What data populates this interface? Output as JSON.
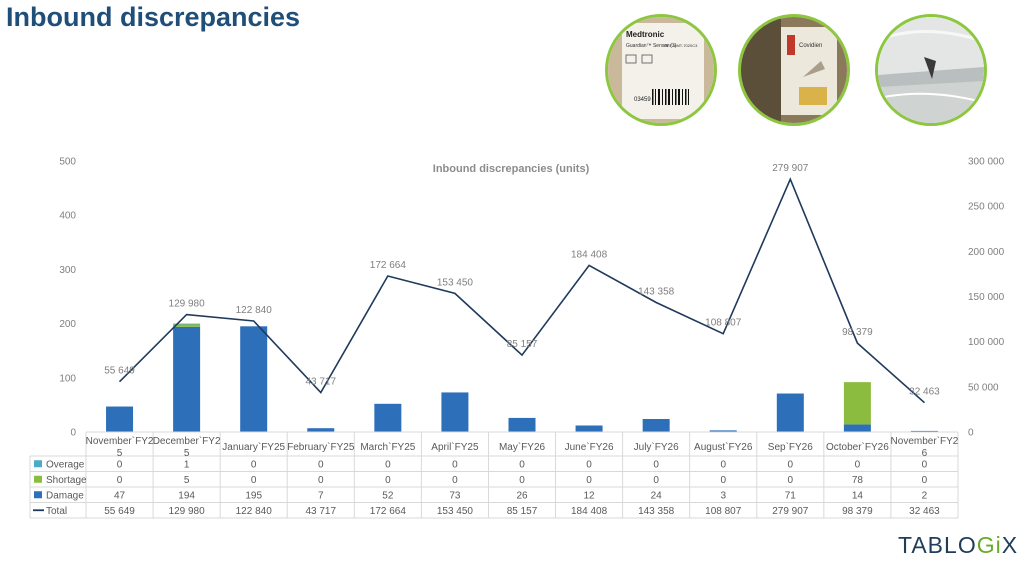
{
  "page": {
    "title": "Inbound discrepancies"
  },
  "logo": {
    "pre": "TABLO",
    "accent": "Gi",
    "post": "X"
  },
  "photos": [
    {
      "name": "photo-medtronic-label",
      "lines": [
        "Medtronic",
        "Guardian™ Sensor (3)",
        "REF MMT-7020C3",
        "03459"
      ]
    },
    {
      "name": "photo-damaged-box",
      "lines": [
        "Covidien"
      ]
    },
    {
      "name": "photo-wrapped-pallet",
      "lines": []
    }
  ],
  "colors": {
    "overage": "#4bacc6",
    "shortage": "#8cbc3f",
    "damage": "#2e6fba",
    "total": "#1f3a5c",
    "accent": "#8dc63f",
    "title": "#1f4e79"
  },
  "chart_data": {
    "type": "bar",
    "title": "Inbound discrepancies (units)",
    "categories": [
      "November`FY25",
      "December`FY25",
      "January`FY25",
      "February`FY25",
      "March`FY25",
      "April`FY25",
      "May`FY26",
      "June`FY26",
      "July`FY26",
      "August`FY26",
      "Sep`FY26",
      "October`FY26",
      "November`FY26"
    ],
    "category_lines": [
      [
        "November`FY2",
        "5"
      ],
      [
        "December`FY2",
        "5"
      ],
      [
        "January`FY25"
      ],
      [
        "February`FY25"
      ],
      [
        "March`FY25"
      ],
      [
        "April`FY25"
      ],
      [
        "May`FY26"
      ],
      [
        "June`FY26"
      ],
      [
        "July`FY26"
      ],
      [
        "August`FY26"
      ],
      [
        "Sep`FY26"
      ],
      [
        "October`FY26"
      ],
      [
        "November`FY2",
        "6"
      ]
    ],
    "stacked": true,
    "series": [
      {
        "name": "Overage",
        "type": "bar",
        "axis": "left",
        "values": [
          0,
          1,
          0,
          0,
          0,
          0,
          0,
          0,
          0,
          0,
          0,
          0,
          0
        ]
      },
      {
        "name": "Shortage",
        "type": "bar",
        "axis": "left",
        "values": [
          0,
          5,
          0,
          0,
          0,
          0,
          0,
          0,
          0,
          0,
          0,
          78,
          0
        ]
      },
      {
        "name": "Damage",
        "type": "bar",
        "axis": "left",
        "values": [
          47,
          194,
          195,
          7,
          52,
          73,
          26,
          12,
          24,
          3,
          71,
          14,
          2
        ]
      },
      {
        "name": "Total",
        "type": "line",
        "axis": "right",
        "values": [
          55649,
          129980,
          122840,
          43717,
          172664,
          153450,
          85157,
          184408,
          143358,
          108807,
          279907,
          98379,
          32463
        ]
      }
    ],
    "table_values": [
      [
        "0",
        "1",
        "0",
        "0",
        "0",
        "0",
        "0",
        "0",
        "0",
        "0",
        "0",
        "0",
        "0"
      ],
      [
        "0",
        "5",
        "0",
        "0",
        "0",
        "0",
        "0",
        "0",
        "0",
        "0",
        "0",
        "78",
        "0"
      ],
      [
        "47",
        "194",
        "195",
        "7",
        "52",
        "73",
        "26",
        "12",
        "24",
        "3",
        "71",
        "14",
        "2"
      ],
      [
        "55 649",
        "129 980",
        "122 840",
        "43 717",
        "172 664",
        "153 450",
        "85 157",
        "184 408",
        "143 358",
        "108 807",
        "279 907",
        "98 379",
        "32 463"
      ]
    ],
    "line_labels": [
      "55 649",
      "129 980",
      "122 840",
      "43 717",
      "172 664",
      "153 450",
      "85 157",
      "184 408",
      "143 358",
      "108 807",
      "279 907",
      "98 379",
      "32 463"
    ],
    "y_left": {
      "min": 0,
      "max": 500,
      "ticks": [
        "0",
        "100",
        "200",
        "300",
        "400",
        "500"
      ]
    },
    "y_right": {
      "min": 0,
      "max": 300000,
      "ticks": [
        "0",
        "50 000",
        "100 000",
        "150 000",
        "200 000",
        "250 000",
        "300 000"
      ]
    },
    "grid": false,
    "legend": "data-table"
  }
}
